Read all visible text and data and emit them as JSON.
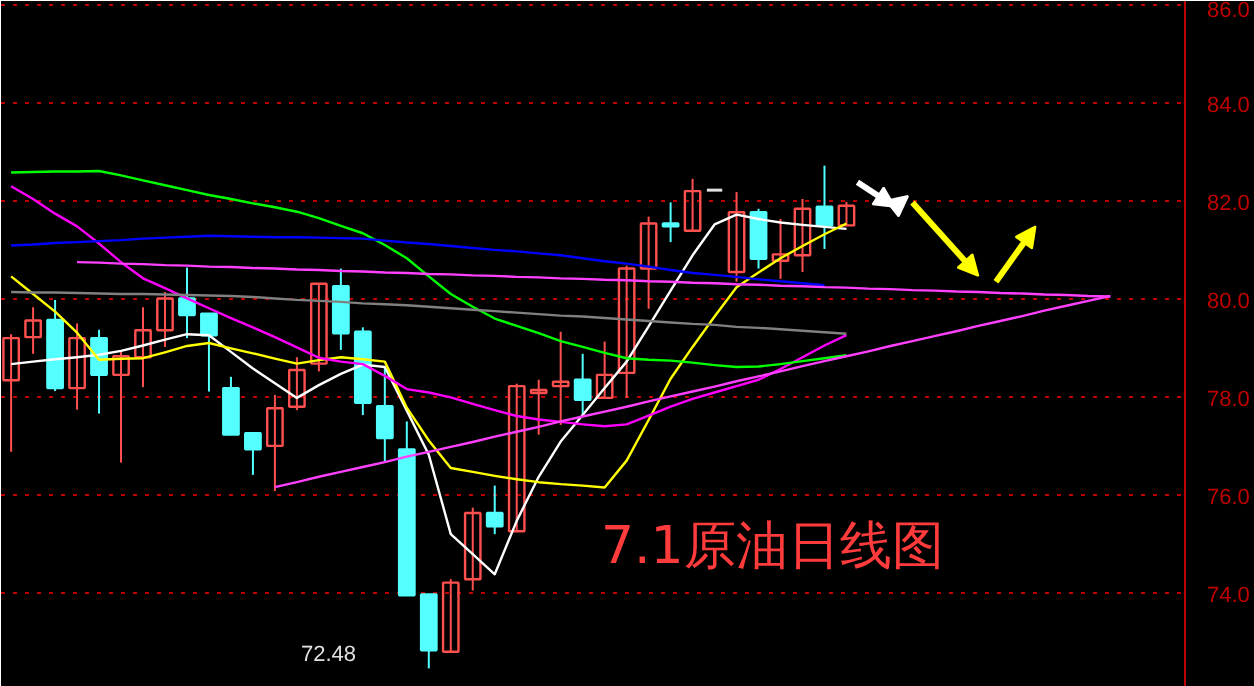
{
  "chart_data": {
    "type": "candlestick",
    "title": "7.1原油日线图",
    "categories": [
      null,
      null,
      null,
      null,
      null,
      null,
      null,
      null,
      null,
      null,
      null,
      null,
      null,
      null,
      null,
      null,
      null,
      null,
      null,
      null,
      null,
      null,
      null,
      null,
      null,
      null,
      null,
      null,
      null,
      null,
      null,
      null,
      null,
      null,
      null,
      null,
      null,
      null,
      null,
      null,
      null,
      null,
      null,
      null,
      null,
      null,
      null,
      null,
      null,
      null,
      null
    ],
    "ohlc": [
      [
        78.36,
        79.3,
        76.9,
        79.22
      ],
      [
        79.24,
        79.85,
        78.9,
        79.58
      ],
      [
        79.59,
        80.0,
        78.14,
        78.2
      ],
      [
        78.2,
        79.52,
        77.76,
        79.22
      ],
      [
        79.22,
        79.39,
        77.68,
        78.47
      ],
      [
        78.47,
        78.94,
        76.68,
        78.85
      ],
      [
        78.83,
        79.85,
        78.22,
        79.38
      ],
      [
        79.38,
        80.16,
        79.04,
        80.03
      ],
      [
        80.03,
        80.66,
        79.22,
        79.69
      ],
      [
        79.72,
        79.72,
        78.13,
        79.28
      ],
      [
        78.2,
        78.43,
        77.25,
        77.25
      ],
      [
        77.28,
        77.28,
        76.43,
        76.95
      ],
      [
        77.02,
        78.06,
        76.1,
        77.79
      ],
      [
        77.82,
        78.83,
        77.75,
        78.57
      ],
      [
        78.7,
        80.33,
        78.54,
        80.33
      ],
      [
        80.28,
        80.64,
        78.98,
        79.32
      ],
      [
        79.35,
        79.44,
        77.65,
        77.9
      ],
      [
        77.83,
        78.63,
        76.68,
        77.18
      ],
      [
        76.95,
        77.52,
        73.97,
        73.97
      ],
      [
        73.99,
        74.0,
        72.48,
        72.85
      ],
      [
        72.82,
        74.3,
        72.8,
        74.23
      ],
      [
        74.3,
        75.76,
        74.07,
        75.65
      ],
      [
        75.65,
        76.21,
        75.22,
        75.38
      ],
      [
        75.28,
        78.29,
        75.28,
        78.24
      ],
      [
        78.1,
        78.37,
        77.25,
        78.16
      ],
      [
        78.24,
        79.35,
        77.45,
        78.33
      ],
      [
        78.37,
        78.9,
        77.65,
        77.96
      ],
      [
        78.0,
        79.15,
        78.0,
        78.47
      ],
      [
        78.51,
        80.7,
        78.0,
        80.64
      ],
      [
        80.64,
        81.7,
        79.82,
        81.56
      ],
      [
        81.56,
        81.99,
        81.18,
        81.5
      ],
      [
        81.41,
        82.47,
        81.41,
        82.22
      ],
      [
        82.24,
        82.24,
        82.24,
        82.24
      ],
      [
        80.57,
        82.2,
        80.37,
        81.79
      ],
      [
        81.79,
        81.86,
        80.64,
        80.84
      ],
      [
        80.8,
        81.65,
        80.43,
        80.93
      ],
      [
        80.91,
        82.06,
        80.57,
        81.86
      ],
      [
        81.9,
        82.74,
        81.04,
        81.52
      ],
      [
        81.52,
        82.0,
        81.52,
        81.92
      ],
      null,
      null,
      null,
      null,
      null,
      null,
      null,
      null,
      null,
      null,
      null,
      null
    ],
    "colors": [
      "#ff5050",
      "#ff5050",
      "#54ffff",
      "#ff5050",
      "#54ffff",
      "#ff5050",
      "#ff5050",
      "#ff5050",
      "#54ffff",
      "#54ffff",
      "#54ffff",
      "#54ffff",
      "#ff5050",
      "#ff5050",
      "#ff5050",
      "#54ffff",
      "#54ffff",
      "#54ffff",
      "#54ffff",
      "#54ffff",
      "#ff5050",
      "#ff5050",
      "#54ffff",
      "#ff5050",
      "#ff5050",
      "#ff5050",
      "#54ffff",
      "#ff5050",
      "#ff5050",
      "#ff5050",
      "#54ffff",
      "#ff5050",
      "#e0e0e0",
      "#ff5050",
      "#54ffff",
      "#ff5050",
      "#ff5050",
      "#54ffff",
      "#ff5050",
      null,
      null,
      null,
      null,
      null,
      null,
      null,
      null,
      null,
      null,
      null,
      null
    ],
    "series": [
      {
        "type": "line",
        "color": "#ffffff",
        "values": [
          78.69,
          78.74,
          78.79,
          78.83,
          78.88,
          78.96,
          79.07,
          79.19,
          79.3,
          79.28,
          78.94,
          78.6,
          78.3,
          78.0,
          78.26,
          78.49,
          78.68,
          78.63,
          77.74,
          76.84,
          75.22,
          74.81,
          74.4,
          75.49,
          76.39,
          77.11,
          77.65,
          78.2,
          78.74,
          79.46,
          80.19,
          80.91,
          81.54,
          81.74,
          81.65,
          81.58,
          81.53,
          81.49,
          81.45,
          null,
          null,
          null,
          null,
          null,
          null,
          null,
          null,
          null,
          null,
          null,
          null
        ]
      },
      {
        "type": "line",
        "color": "#ffff00",
        "values": [
          80.48,
          80.12,
          79.76,
          79.33,
          78.78,
          78.8,
          78.81,
          78.93,
          79.06,
          79.12,
          79.01,
          78.91,
          78.8,
          78.7,
          78.77,
          78.83,
          78.79,
          78.74,
          77.8,
          77.13,
          76.57,
          76.49,
          76.41,
          76.34,
          76.28,
          76.24,
          76.21,
          76.17,
          76.72,
          77.55,
          78.39,
          79.04,
          79.66,
          80.26,
          80.56,
          80.85,
          81.1,
          81.34,
          81.56,
          null,
          null,
          null,
          null,
          null,
          null,
          null,
          null,
          null,
          null,
          null,
          null
        ]
      },
      {
        "type": "line",
        "color": "#ff00ff",
        "values": [
          82.32,
          82.06,
          81.76,
          81.5,
          81.15,
          80.77,
          80.44,
          80.24,
          80.03,
          79.83,
          79.63,
          79.44,
          79.24,
          79.03,
          78.82,
          78.74,
          78.69,
          78.45,
          78.18,
          78.11,
          78.01,
          77.88,
          77.75,
          77.63,
          77.56,
          77.51,
          77.46,
          77.42,
          77.46,
          77.64,
          77.82,
          77.98,
          78.11,
          78.24,
          78.37,
          78.59,
          78.83,
          79.07,
          79.28,
          null,
          null,
          null,
          null,
          null,
          null,
          null,
          null,
          null,
          null,
          null,
          null
        ]
      },
      {
        "type": "line",
        "color": "#00ff00",
        "values": [
          82.6,
          82.61,
          82.62,
          82.62,
          82.63,
          82.54,
          82.44,
          82.34,
          82.24,
          82.14,
          82.06,
          81.97,
          81.89,
          81.8,
          81.67,
          81.51,
          81.36,
          81.12,
          80.85,
          80.48,
          80.12,
          79.86,
          79.62,
          79.47,
          79.32,
          79.16,
          79.04,
          78.92,
          78.81,
          78.78,
          78.76,
          78.72,
          78.67,
          78.63,
          78.64,
          78.69,
          78.75,
          78.81,
          78.87,
          null,
          null,
          null,
          null,
          null,
          null,
          null,
          null,
          null,
          null,
          null,
          null
        ]
      },
      {
        "type": "line",
        "color": "#0000ff",
        "values": [
          81.11,
          81.13,
          81.16,
          81.18,
          81.2,
          81.22,
          81.25,
          81.27,
          81.29,
          81.31,
          81.3,
          81.29,
          81.28,
          81.28,
          81.27,
          81.26,
          81.25,
          81.21,
          81.17,
          81.14,
          81.1,
          81.06,
          81.02,
          80.99,
          80.95,
          80.91,
          80.85,
          80.79,
          80.74,
          80.68,
          80.61,
          80.55,
          80.51,
          80.47,
          80.42,
          80.38,
          80.34,
          80.3,
          null,
          null,
          null,
          null,
          null,
          null,
          null,
          null,
          null,
          null,
          null,
          null,
          null
        ]
      },
      {
        "type": "line",
        "color": "#808080",
        "values": [
          80.16,
          80.15,
          80.15,
          80.14,
          80.13,
          80.12,
          80.12,
          80.11,
          80.1,
          80.09,
          80.08,
          80.06,
          80.03,
          80.0,
          79.98,
          79.96,
          79.93,
          79.91,
          79.89,
          79.86,
          79.83,
          79.8,
          79.77,
          79.74,
          79.71,
          79.68,
          79.66,
          79.63,
          79.6,
          79.57,
          79.54,
          79.51,
          79.49,
          79.45,
          79.43,
          79.4,
          79.37,
          79.34,
          79.31,
          null,
          null,
          null,
          null,
          null,
          null,
          null,
          null,
          null,
          null,
          null,
          null
        ]
      },
      {
        "type": "line",
        "color": "#ff40ff",
        "values": [
          null,
          null,
          null,
          80.77,
          80.76,
          80.74,
          80.73,
          80.71,
          80.7,
          80.68,
          80.67,
          80.65,
          80.64,
          80.62,
          80.61,
          80.59,
          80.58,
          80.56,
          80.55,
          80.53,
          80.52,
          80.5,
          80.49,
          80.47,
          80.46,
          80.44,
          80.43,
          80.41,
          80.4,
          80.38,
          80.37,
          80.35,
          80.34,
          80.32,
          80.31,
          80.29,
          80.28,
          80.26,
          80.25,
          80.23,
          80.22,
          80.2,
          80.19,
          80.17,
          80.16,
          80.14,
          80.13,
          80.11,
          80.1,
          80.08,
          80.07
        ]
      },
      {
        "type": "line",
        "color": "#ff40ff",
        "values": [
          null,
          null,
          null,
          null,
          null,
          null,
          null,
          null,
          null,
          null,
          null,
          null,
          76.18,
          76.28,
          76.39,
          76.49,
          76.59,
          76.69,
          76.8,
          76.9,
          77.0,
          77.1,
          77.21,
          77.31,
          77.41,
          77.52,
          77.62,
          77.72,
          77.82,
          77.93,
          78.03,
          78.13,
          78.23,
          78.34,
          78.44,
          78.54,
          78.65,
          78.75,
          78.85,
          78.95,
          79.06,
          79.16,
          79.26,
          79.36,
          79.47,
          79.57,
          79.67,
          79.78,
          79.88,
          79.98,
          80.08
        ]
      }
    ],
    "annotations": [
      "72.48"
    ],
    "ylim": [
      72.1,
      86.1
    ],
    "yticks": [
      {
        "value": 74,
        "label": "74.0"
      },
      {
        "value": 76,
        "label": "76.0"
      },
      {
        "value": 78,
        "label": "78.0"
      },
      {
        "value": 80,
        "label": "80.0"
      },
      {
        "value": 82,
        "label": "82.0"
      },
      {
        "value": 84,
        "label": "84.0"
      },
      {
        "value": 86,
        "label": "86.0"
      }
    ],
    "tick_labels": "y",
    "grid": "y"
  }
}
